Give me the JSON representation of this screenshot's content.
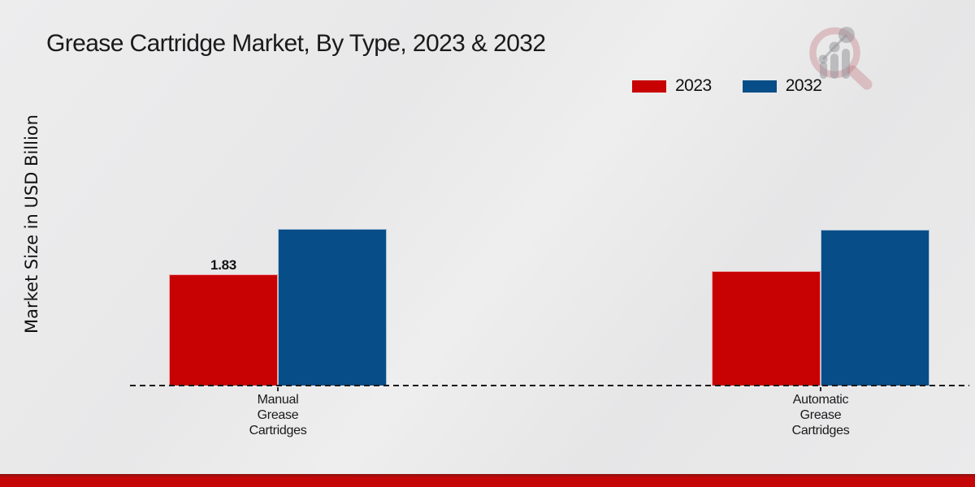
{
  "chart_data": {
    "type": "bar",
    "title": "Grease Cartridge Market, By Type, 2023 & 2032",
    "xlabel": "",
    "ylabel": "Market Size in USD Billion",
    "categories": [
      "Manual Grease Cartridges",
      "Automatic Grease Cartridges"
    ],
    "series": [
      {
        "name": "2023",
        "color": "#c80202",
        "values": [
          1.83,
          1.88
        ]
      },
      {
        "name": "2032",
        "color": "#074e88",
        "values": [
          2.58,
          2.57
        ]
      }
    ],
    "value_labels": [
      {
        "series": "2023",
        "category": "Manual Grease Cartridges",
        "text": "1.83"
      }
    ],
    "ylim": [
      0,
      3
    ],
    "grid": false,
    "legend_position": "top-right",
    "baseline_style": "dashed",
    "baseline_color": "#1a1a1a",
    "background_color": "#e9e9e9"
  },
  "logo": {
    "name": "market-research-future-watermark",
    "ring_color": "rgba(192,112,120,0.35)",
    "glyph_color": "rgba(144,144,150,0.5)"
  },
  "footer": {
    "bar_color": "#c40606",
    "edge_color": "#9b0f0f"
  }
}
